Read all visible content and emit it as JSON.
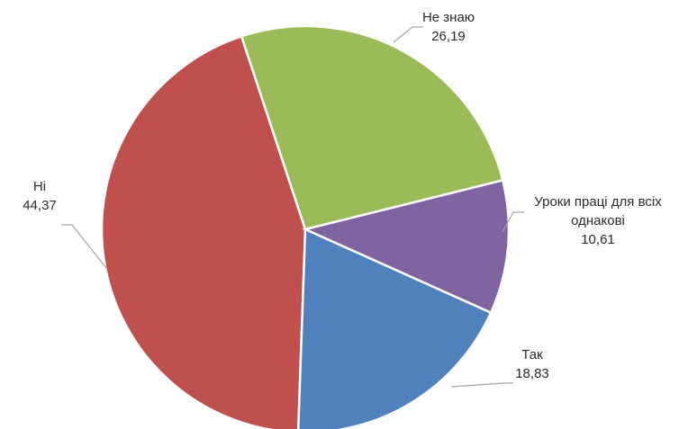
{
  "chart_data": {
    "type": "pie",
    "title": "",
    "slices": [
      {
        "label": "Ні",
        "value": 44.37,
        "display_value": "44,37",
        "color": "#c0504d"
      },
      {
        "label": "Не знаю",
        "value": 26.19,
        "display_value": "26,19",
        "color": "#9bbb59"
      },
      {
        "label": "Уроки праці для всіх однакові",
        "label_lines": [
          "Уроки праці для всіх",
          "однакові"
        ],
        "value": 10.61,
        "display_value": "10,61",
        "color": "#8064a2"
      },
      {
        "label": "Так",
        "value": 18.83,
        "display_value": "18,83",
        "color": "#4f81bd"
      }
    ],
    "legend": "none",
    "data_labels": "outside with leader lines"
  }
}
